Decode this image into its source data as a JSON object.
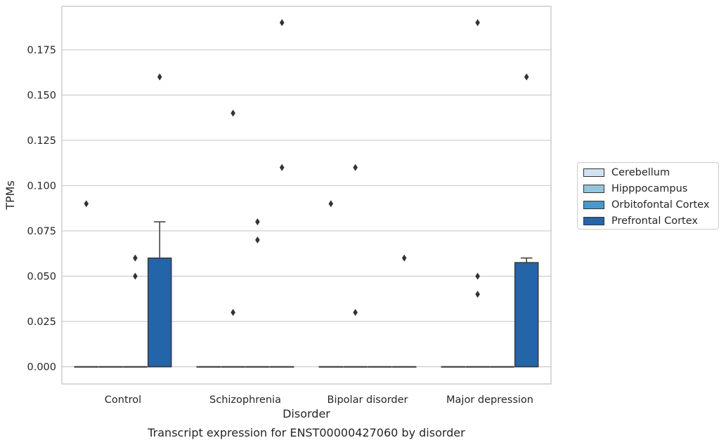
{
  "chart_data": {
    "type": "box",
    "title": "Transcript expression for ENST00000427060 by disorder",
    "xlabel": "Disorder",
    "ylabel": "TPMs",
    "categories": [
      "Control",
      "Schizophrenia",
      "Bipolar disorder",
      "Major depression"
    ],
    "ylim": [
      -0.0095,
      0.199
    ],
    "yticks": [
      "0.000",
      "0.025",
      "0.050",
      "0.075",
      "0.100",
      "0.125",
      "0.150",
      "0.175"
    ],
    "grid": true,
    "legend_position": "right",
    "series": [
      {
        "name": "Cerebellum",
        "color": "#d0e1f2",
        "boxes": [
          {
            "q1": 0,
            "median": 0,
            "q3": 0,
            "whisker_low": 0,
            "whisker_high": 0,
            "outliers": [
              0.09
            ]
          },
          {
            "q1": 0,
            "median": 0,
            "q3": 0,
            "whisker_low": 0,
            "whisker_high": 0,
            "outliers": []
          },
          {
            "q1": 0,
            "median": 0,
            "q3": 0,
            "whisker_low": 0,
            "whisker_high": 0,
            "outliers": [
              0.09
            ]
          },
          {
            "q1": 0,
            "median": 0,
            "q3": 0,
            "whisker_low": 0,
            "whisker_high": 0,
            "outliers": []
          }
        ]
      },
      {
        "name": "Hipppocampus",
        "color": "#94c4df",
        "boxes": [
          {
            "q1": 0,
            "median": 0,
            "q3": 0,
            "whisker_low": 0,
            "whisker_high": 0,
            "outliers": []
          },
          {
            "q1": 0,
            "median": 0,
            "q3": 0,
            "whisker_low": 0,
            "whisker_high": 0,
            "outliers": [
              0.14,
              0.03
            ]
          },
          {
            "q1": 0,
            "median": 0,
            "q3": 0,
            "whisker_low": 0,
            "whisker_high": 0,
            "outliers": [
              0.11,
              0.03
            ]
          },
          {
            "q1": 0,
            "median": 0,
            "q3": 0,
            "whisker_low": 0,
            "whisker_high": 0,
            "outliers": [
              0.19,
              0.05,
              0.04
            ]
          }
        ]
      },
      {
        "name": "Orbitofontal Cortex",
        "color": "#4a98c9",
        "boxes": [
          {
            "q1": 0,
            "median": 0,
            "q3": 0,
            "whisker_low": 0,
            "whisker_high": 0,
            "outliers": [
              0.06,
              0.05
            ]
          },
          {
            "q1": 0,
            "median": 0,
            "q3": 0,
            "whisker_low": 0,
            "whisker_high": 0,
            "outliers": [
              0.08,
              0.07
            ]
          },
          {
            "q1": 0,
            "median": 0,
            "q3": 0,
            "whisker_low": 0,
            "whisker_high": 0,
            "outliers": []
          },
          {
            "q1": 0,
            "median": 0,
            "q3": 0,
            "whisker_low": 0,
            "whisker_high": 0,
            "outliers": []
          }
        ]
      },
      {
        "name": "Prefrontal Cortex",
        "color": "#2464a8",
        "boxes": [
          {
            "q1": 0,
            "median": 0,
            "q3": 0.06,
            "whisker_low": 0,
            "whisker_high": 0.08,
            "outliers": [
              0.16
            ]
          },
          {
            "q1": 0,
            "median": 0,
            "q3": 0,
            "whisker_low": 0,
            "whisker_high": 0,
            "outliers": [
              0.19,
              0.11
            ]
          },
          {
            "q1": 0,
            "median": 0,
            "q3": 0,
            "whisker_low": 0,
            "whisker_high": 0,
            "outliers": [
              0.06
            ]
          },
          {
            "q1": 0,
            "median": 0,
            "q3": 0.0575,
            "whisker_low": 0,
            "whisker_high": 0.06,
            "outliers": [
              0.16
            ]
          }
        ]
      }
    ]
  }
}
